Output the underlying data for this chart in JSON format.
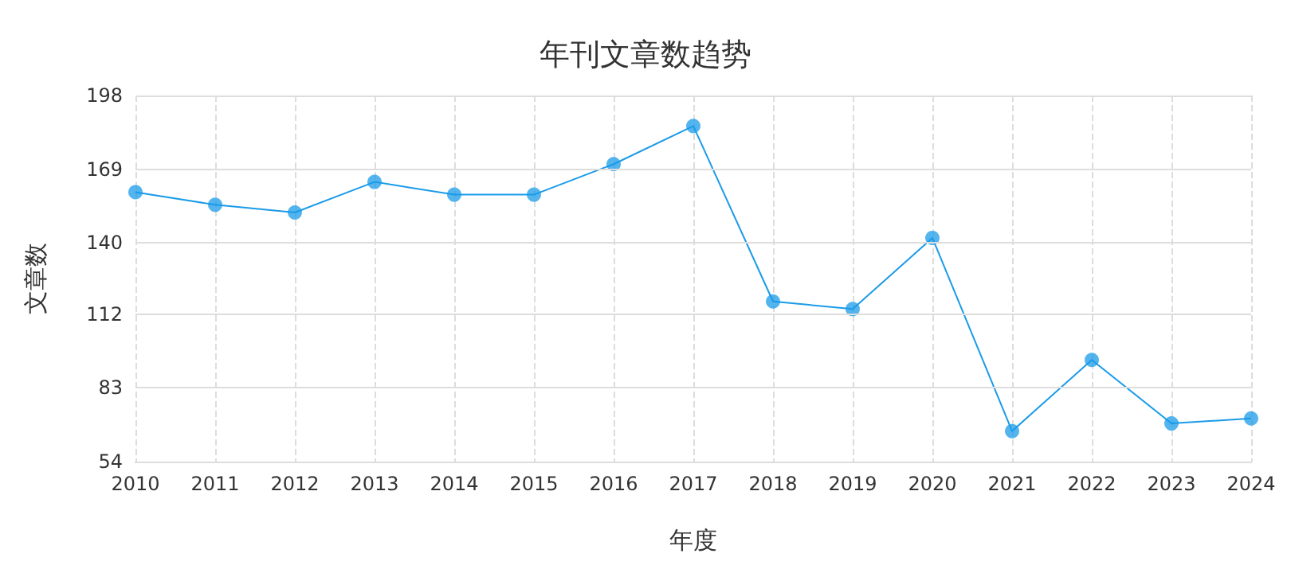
{
  "chart_data": {
    "type": "line",
    "title": "年刊文章数趋势",
    "xlabel": "年度",
    "ylabel": "文章数",
    "categories": [
      "2010",
      "2011",
      "2012",
      "2013",
      "2014",
      "2015",
      "2016",
      "2017",
      "2018",
      "2019",
      "2020",
      "2021",
      "2022",
      "2023",
      "2024"
    ],
    "series": [
      {
        "color": "#1a9be8",
        "values": [
          160,
          155,
          152,
          164,
          159,
          159,
          171,
          186,
          117,
          114,
          142,
          66,
          94,
          69,
          71
        ]
      }
    ],
    "ylim": [
      54,
      198
    ],
    "yticks": [
      54,
      83,
      112,
      140,
      169,
      198
    ],
    "grid": true,
    "marker": "circle",
    "line_style": "solid"
  }
}
